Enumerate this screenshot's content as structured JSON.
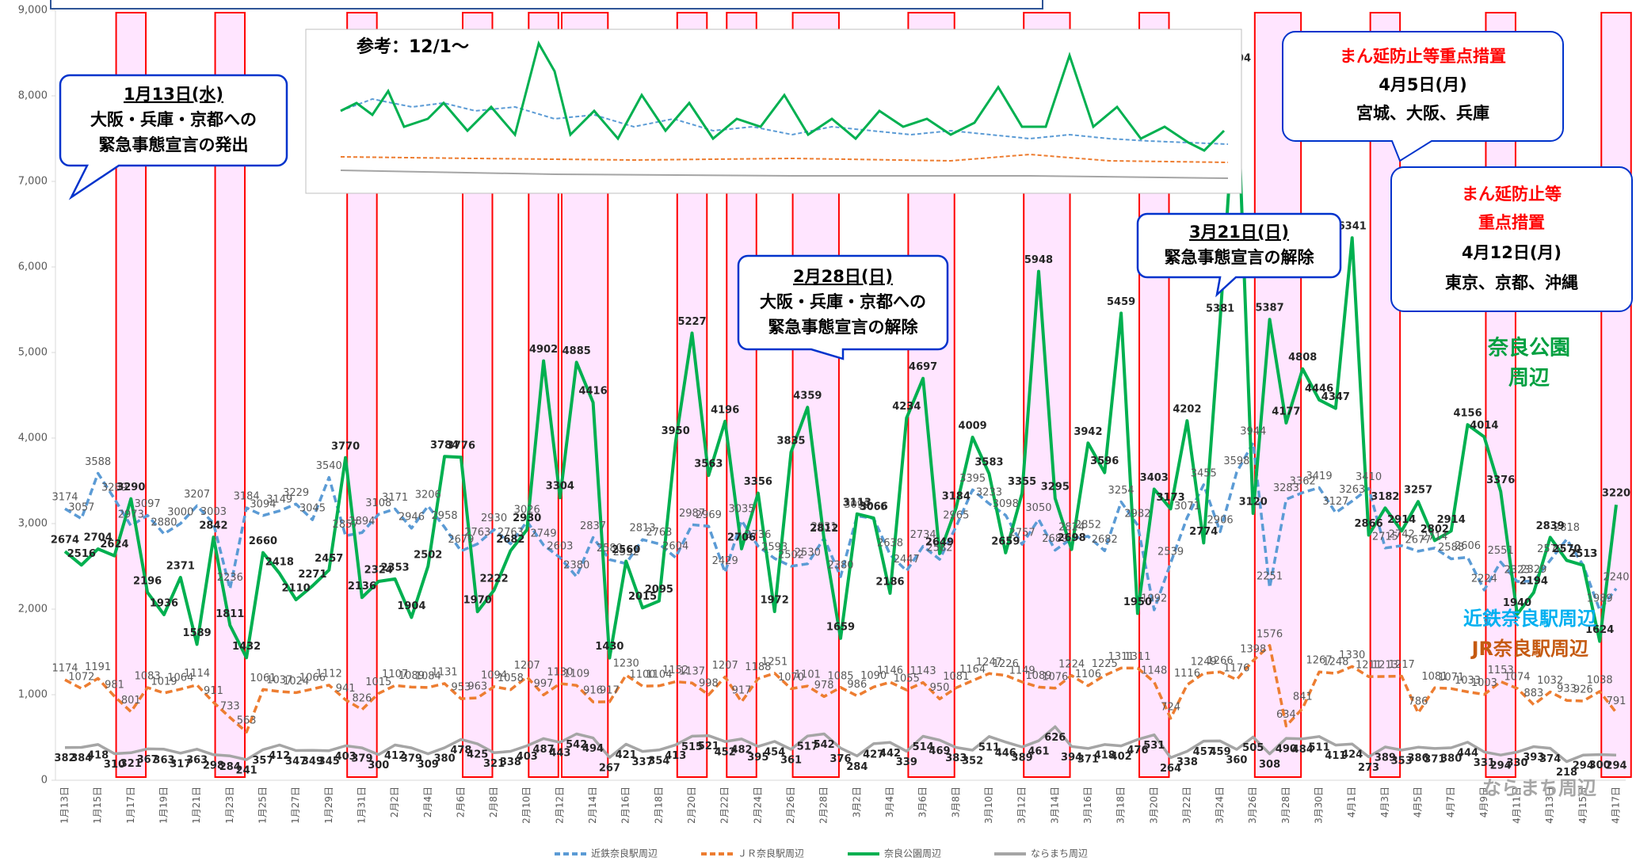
{
  "chart_data": {
    "type": "line",
    "categories": [
      "1月13日",
      null,
      "1月15日",
      null,
      "1月17日",
      null,
      "1月19日",
      null,
      "1月21日",
      null,
      "1月23日",
      null,
      "1月25日",
      null,
      "1月27日",
      null,
      "1月29日",
      null,
      "1月31日",
      null,
      "2月2日",
      null,
      "2月4日",
      null,
      "2月6日",
      null,
      "2月8日",
      null,
      "2月10日",
      null,
      "2月12日",
      null,
      "2月14日",
      null,
      "2月16日",
      null,
      "2月18日",
      null,
      "2月20日",
      null,
      "2月22日",
      null,
      "2月24日",
      null,
      "2月26日",
      null,
      "2月28日",
      null,
      "3月2日",
      null,
      "3月4日",
      null,
      "3月6日",
      null,
      "3月8日",
      null,
      "3月10日",
      null,
      "3月12日",
      null,
      "3月14日",
      null,
      "3月16日",
      null,
      "3月18日",
      null,
      "3月20日",
      null,
      "3月22日",
      null,
      "3月24日",
      null,
      "3月26日",
      null,
      "3月28日",
      null,
      "3月30日",
      null,
      "4月1日",
      null,
      "4月3日",
      null,
      "4月5日",
      null,
      "4月7日",
      null,
      "4月9日",
      null,
      "4月11日",
      null,
      "4月13日",
      null,
      "4月15日",
      null,
      "4月17日"
    ],
    "series": [
      {
        "name": "近鉄奈良駅周辺",
        "color": "#5b9bd5",
        "dash": true,
        "values": [
          3174,
          3057,
          3588,
          3289,
          2973,
          3097,
          2880,
          3000,
          3207,
          3003,
          2236,
          3184,
          3094,
          3149,
          3229,
          3045,
          3540,
          2857,
          2894,
          3108,
          3171,
          2946,
          3206,
          2958,
          2679,
          2763,
          2930,
          2763,
          3026,
          2749,
          2603,
          2380,
          2837,
          2580,
          2532,
          2813,
          2763,
          2604,
          2987,
          2969,
          2429,
          3035,
          2736,
          2593,
          2502,
          2530,
          2831,
          2380,
          3090,
          3060,
          2638,
          2447,
          2734,
          2582,
          2965,
          3395,
          3233,
          3098,
          2757,
          3050,
          2689,
          2824,
          2852,
          2682,
          3254,
          2982,
          1992,
          2539,
          3071,
          3455,
          2906,
          3598,
          3944,
          2251,
          3283,
          3362,
          3419,
          3127,
          3263,
          3410,
          2715,
          2742,
          2677,
          2714,
          2588,
          2606,
          2224,
          2551,
          2323,
          2329,
          2570,
          2818,
          2513,
          1989,
          2240
        ]
      },
      {
        "name": "ＪＲ奈良駅周辺",
        "color": "#ed7d31",
        "dash": true,
        "values": [
          1174,
          1072,
          1191,
          981,
          801,
          1083,
          1019,
          1064,
          1114,
          911,
          733,
          563,
          1061,
          1037,
          1024,
          1066,
          1112,
          941,
          826,
          1015,
          1107,
          1089,
          1084,
          1131,
          953,
          963,
          1094,
          1058,
          1207,
          997,
          1130,
          1109,
          916,
          917,
          1230,
          1100,
          1104,
          1152,
          1137,
          998,
          1207,
          917,
          1188,
          1251,
          1070,
          1101,
          978,
          1085,
          986,
          1090,
          1146,
          1055,
          1143,
          950,
          1081,
          1164,
          1247,
          1226,
          1149,
          1089,
          1076,
          1224,
          1106,
          1225,
          1311,
          1311,
          1148,
          724,
          1116,
          1249,
          1266,
          1176,
          1398,
          1576,
          634,
          841,
          1267,
          1248,
          1330,
          1211,
          1213,
          1217,
          786,
          1081,
          1071,
          1033,
          1003,
          1153,
          1074,
          883,
          1032,
          933,
          926,
          1038,
          791
        ]
      },
      {
        "name": "奈良公園周辺",
        "color": "#00b050",
        "dash": false,
        "values": [
          2674,
          2516,
          2704,
          2624,
          3290,
          2196,
          1936,
          2371,
          1589,
          2842,
          1811,
          1432,
          2660,
          2418,
          2110,
          2271,
          2457,
          3770,
          2136,
          2324,
          2353,
          1904,
          2502,
          3784,
          3776,
          1970,
          2222,
          2682,
          2930,
          4902,
          3304,
          4885,
          4416,
          1430,
          2560,
          2015,
          2095,
          3950,
          5227,
          3563,
          4196,
          2706,
          3356,
          1972,
          3835,
          4359,
          2812,
          1659,
          3113,
          3066,
          2186,
          4234,
          4697,
          2649,
          3184,
          4009,
          3583,
          2659,
          3355,
          5948,
          3295,
          2698,
          3942,
          3596,
          5459,
          1950,
          3403,
          3173,
          4202,
          2774,
          5381,
          8304,
          3120,
          5387,
          4177,
          4808,
          4446,
          4347,
          6341,
          2866,
          3182,
          2914,
          3257,
          2802,
          2914,
          4156,
          4014,
          3376,
          1940,
          2194,
          2839,
          2570,
          2513,
          1624,
          3220
        ]
      },
      {
        "name": "ならまち周辺",
        "color": "#a5a5a5",
        "dash": false,
        "values": [
          382,
          384,
          418,
          310,
          321,
          367,
          363,
          317,
          363,
          298,
          284,
          241,
          357,
          412,
          347,
          349,
          345,
          403,
          379,
          300,
          412,
          379,
          309,
          380,
          478,
          425,
          321,
          338,
          403,
          487,
          443,
          542,
          494,
          267,
          421,
          337,
          354,
          413,
          515,
          521,
          452,
          482,
          395,
          454,
          361,
          517,
          542,
          376,
          284,
          427,
          442,
          339,
          514,
          469,
          383,
          352,
          511,
          446,
          389,
          461,
          626,
          394,
          371,
          418,
          402,
          476,
          531,
          264,
          338,
          457,
          459,
          360,
          505,
          308,
          490,
          484,
          511,
          411,
          424,
          273,
          389,
          353,
          386,
          371,
          380,
          444,
          331,
          294,
          330,
          393,
          374,
          218,
          294,
          300,
          294
        ]
      }
    ],
    "ylim": [
      0,
      9000
    ],
    "yticks": [
      0,
      {
        "value": 1000,
        "label": "1,000"
      },
      {
        "value": 2000,
        "label": "2,000"
      },
      {
        "value": 3000,
        "label": "3,000"
      },
      {
        "value": 4000,
        "label": "4,000"
      },
      {
        "value": 5000,
        "label": "5,000"
      },
      {
        "value": 6000,
        "label": "6,000"
      },
      {
        "value": 7000,
        "label": "7,000"
      },
      {
        "value": 8000,
        "label": "8,000"
      },
      {
        "value": 9000,
        "label": "9,000"
      }
    ],
    "grid": false,
    "legend": "bottom",
    "inset_title": "参考：12/1〜",
    "side_labels": {
      "park": [
        "奈良公園",
        "周辺"
      ],
      "kintetsu": "近鉄奈良駅周辺",
      "jr": "JR奈良駅周辺",
      "naramachi": "ならまち周辺"
    },
    "callouts": [
      {
        "lines": [
          "1月13日(水)",
          "大阪・兵庫・京都への",
          "緊急事態宣言の発出"
        ]
      },
      {
        "lines": [
          "2月28日(日)",
          "大阪・兵庫・京都への",
          "緊急事態宣言の解除"
        ]
      },
      {
        "lines": [
          "3月21日(日)",
          "緊急事態宣言の解除"
        ]
      },
      {
        "lines": [
          "まん延防止等重点措置",
          "4月5日(月)",
          "宮城、大阪、兵庫"
        ]
      },
      {
        "lines": [
          "まん延防止等",
          "重点措置",
          "4月12日(月)",
          "東京、京都、沖縄"
        ]
      }
    ]
  }
}
